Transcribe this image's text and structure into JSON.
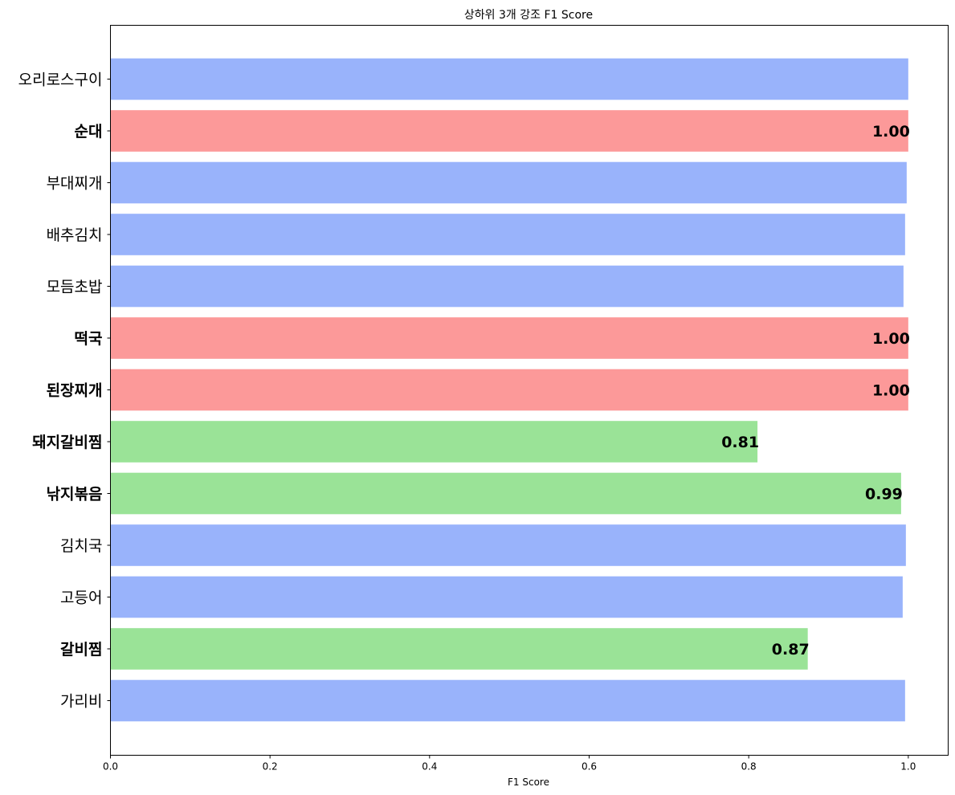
{
  "chart_data": {
    "type": "bar",
    "orientation": "horizontal",
    "title": "상하위 3개 강조 F1 Score",
    "xlabel": "F1 Score",
    "ylabel": "",
    "xlim": [
      0,
      1.05
    ],
    "xticks": [
      "0.0",
      "0.2",
      "0.4",
      "0.6",
      "0.8",
      "1.0"
    ],
    "grid": false,
    "colors": {
      "default": "#99b3fb",
      "top3": "#fc9999",
      "bottom3": "#9ae397"
    },
    "categories": [
      "오리로스구이",
      "순대",
      "부대찌개",
      "배추김치",
      "모듬초밥",
      "떡국",
      "된장찌개",
      "돼지갈비찜",
      "낚지볶음",
      "김치국",
      "고등어",
      "갈비찜",
      "가리비"
    ],
    "values": [
      1.0,
      1.0,
      0.998,
      0.996,
      0.994,
      1.0,
      1.0,
      0.811,
      0.991,
      0.997,
      0.993,
      0.874,
      0.996
    ],
    "groups": [
      "default",
      "top3",
      "default",
      "default",
      "default",
      "top3",
      "top3",
      "bottom3",
      "bottom3",
      "default",
      "default",
      "bottom3",
      "default"
    ],
    "data_labels": [
      "",
      "1.00",
      "",
      "",
      "",
      "1.00",
      "1.00",
      "0.81",
      "0.99",
      "",
      "",
      "0.87",
      ""
    ]
  }
}
